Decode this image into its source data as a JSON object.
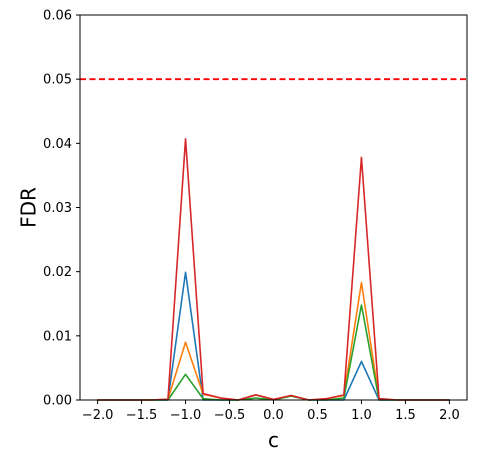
{
  "chart_data": {
    "type": "line",
    "title": "",
    "xlabel": "c",
    "ylabel": "FDR",
    "xlim": [
      -2.2,
      2.2
    ],
    "ylim": [
      0,
      0.06
    ],
    "grid": false,
    "x_ticks": [
      -2.0,
      -1.5,
      -1.0,
      -0.5,
      0.0,
      0.5,
      1.0,
      1.5,
      2.0
    ],
    "x_tick_labels": [
      "−2.0",
      "−1.5",
      "−1.0",
      "−0.5",
      "0.0",
      "0.5",
      "1.0",
      "1.5",
      "2.0"
    ],
    "y_ticks": [
      0,
      0.01,
      0.02,
      0.03,
      0.04,
      0.05,
      0.06
    ],
    "y_tick_labels": [
      "0.00",
      "0.01",
      "0.02",
      "0.03",
      "0.04",
      "0.05",
      "0.06"
    ],
    "x": [
      -2.0,
      -1.8,
      -1.6,
      -1.4,
      -1.2,
      -1.0,
      -0.8,
      -0.6,
      -0.4,
      -0.2,
      0.0,
      0.2,
      0.4,
      0.6,
      0.8,
      1.0,
      1.2,
      1.4,
      1.6,
      1.8,
      2.0
    ],
    "series": [
      {
        "color": "#1f77b4",
        "values": [
          0,
          0,
          0,
          0,
          0,
          0.0199,
          0,
          0,
          0,
          0.0008,
          0,
          0.0007,
          0,
          0,
          0,
          0.006,
          0,
          0,
          0,
          0,
          0
        ]
      },
      {
        "color": "#ff7f0e",
        "values": [
          0,
          0,
          0,
          0,
          0.0001,
          0.009,
          0.0009,
          0.0003,
          0,
          0.0008,
          0.0001,
          0.0007,
          0,
          0.0002,
          0.0007,
          0.0183,
          0.0002,
          0,
          0,
          0,
          0
        ]
      },
      {
        "color": "#2ca02c",
        "values": [
          0,
          0,
          0,
          0,
          0,
          0.004,
          0.0002,
          0,
          0,
          0.0003,
          0,
          0.0006,
          0,
          0,
          0.0003,
          0.0148,
          0,
          0,
          0,
          0,
          0
        ]
      },
      {
        "color": "#d62728",
        "values": [
          0,
          0,
          0,
          0,
          0.0001,
          0.0407,
          0.001,
          0.0003,
          0,
          0.0008,
          0.0001,
          0.0007,
          0,
          0.0002,
          0.0008,
          0.0378,
          0.0002,
          0,
          0,
          0,
          0
        ]
      }
    ],
    "reference_line": {
      "y": 0.05,
      "color": "#ff0000",
      "style": "dashed"
    }
  }
}
